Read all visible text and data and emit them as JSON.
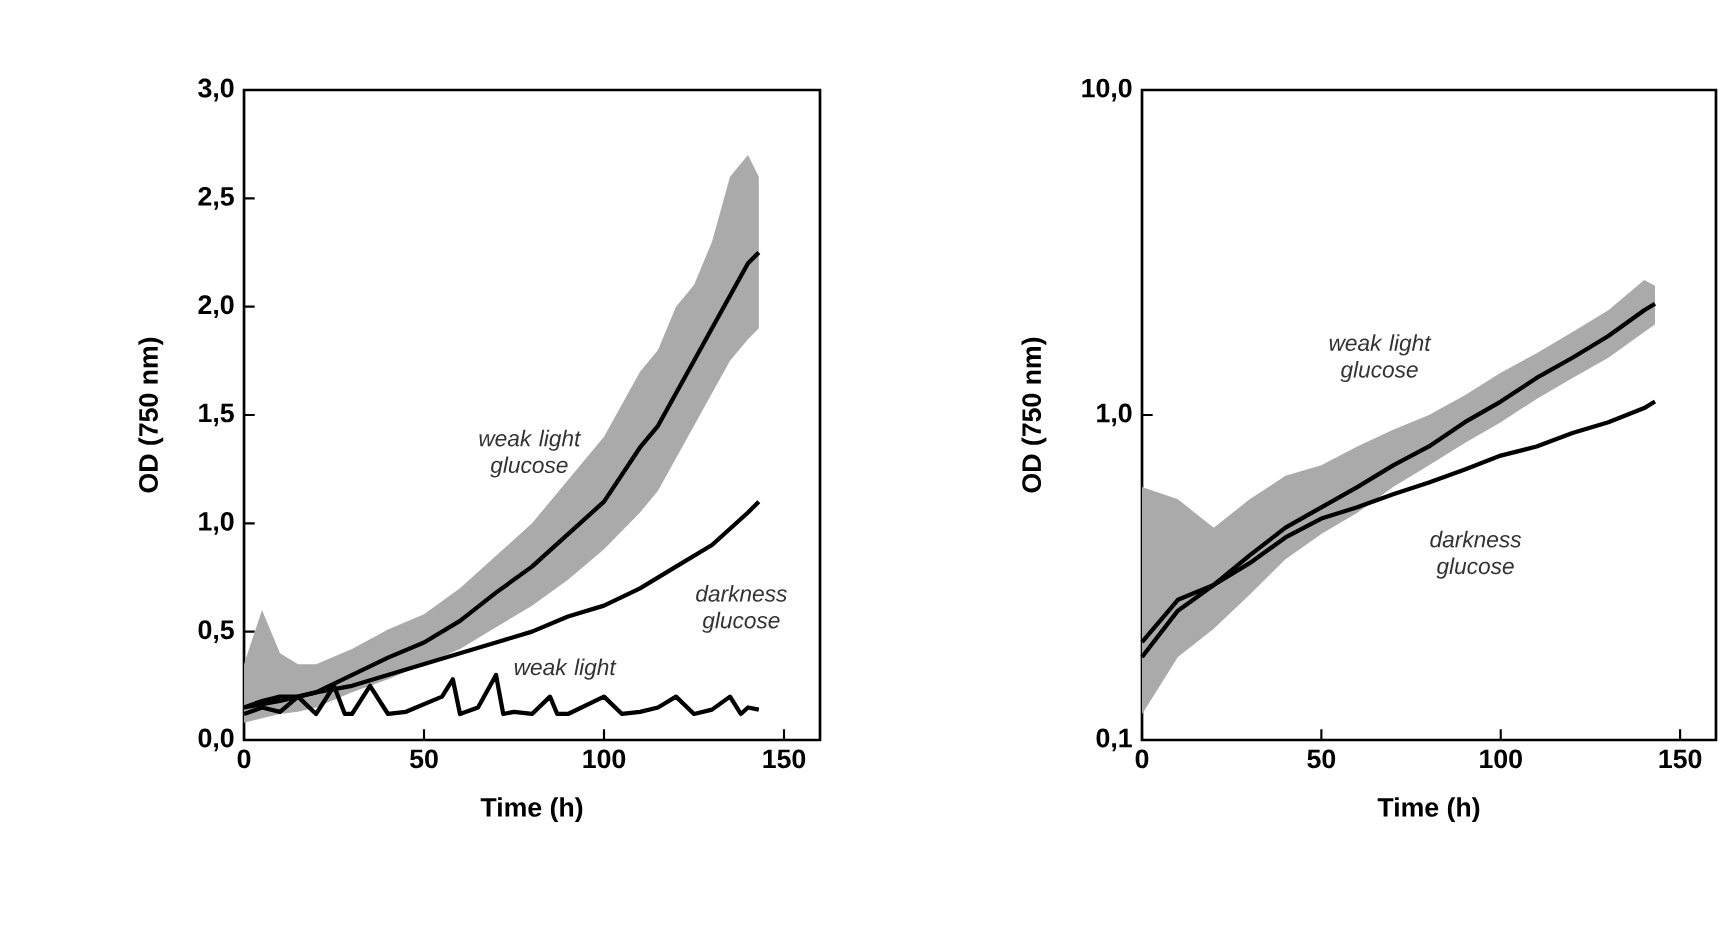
{
  "chart_data": [
    {
      "type": "line",
      "xlabel": "Time (h)",
      "ylabel": "OD (750 nm)",
      "xlim": [
        0,
        160
      ],
      "ylim": [
        0,
        3
      ],
      "xticks": [
        0,
        50,
        100,
        150
      ],
      "yticks": [
        {
          "value": 0,
          "label": "0,0"
        },
        {
          "value": 0.5,
          "label": "0,5"
        },
        {
          "value": 1,
          "label": "1,0"
        },
        {
          "value": 1.5,
          "label": "1,5"
        },
        {
          "value": 2,
          "label": "2,0"
        },
        {
          "value": 2.5,
          "label": "2,5"
        },
        {
          "value": 3,
          "label": "3,0"
        }
      ],
      "line_style": "solid",
      "series": [
        {
          "name": "weak light glucose",
          "color": "#000000",
          "x": [
            0,
            5,
            10,
            15,
            20,
            30,
            40,
            50,
            60,
            70,
            80,
            90,
            100,
            110,
            115,
            120,
            125,
            130,
            135,
            140,
            143
          ],
          "values": [
            0.15,
            0.18,
            0.2,
            0.2,
            0.22,
            0.3,
            0.38,
            0.45,
            0.55,
            0.68,
            0.8,
            0.95,
            1.1,
            1.35,
            1.45,
            1.6,
            1.75,
            1.9,
            2.05,
            2.2,
            2.25
          ],
          "lower": [
            0.08,
            0.1,
            0.12,
            0.13,
            0.15,
            0.22,
            0.28,
            0.35,
            0.42,
            0.52,
            0.62,
            0.74,
            0.88,
            1.05,
            1.15,
            1.3,
            1.45,
            1.6,
            1.75,
            1.85,
            1.9
          ],
          "upper": [
            0.35,
            0.6,
            0.4,
            0.35,
            0.35,
            0.42,
            0.51,
            0.58,
            0.7,
            0.85,
            1.0,
            1.2,
            1.4,
            1.7,
            1.8,
            2.0,
            2.1,
            2.3,
            2.6,
            2.7,
            2.6
          ]
        },
        {
          "name": "darkness glucose",
          "color": "#000000",
          "x": [
            0,
            10,
            20,
            30,
            40,
            50,
            60,
            70,
            80,
            90,
            100,
            110,
            120,
            130,
            140,
            143
          ],
          "values": [
            0.15,
            0.18,
            0.22,
            0.25,
            0.3,
            0.35,
            0.4,
            0.45,
            0.5,
            0.57,
            0.62,
            0.7,
            0.8,
            0.9,
            1.05,
            1.1
          ]
        },
        {
          "name": "weak light",
          "color": "#000000",
          "x": [
            0,
            5,
            10,
            15,
            20,
            25,
            28,
            30,
            35,
            40,
            45,
            55,
            58,
            60,
            65,
            70,
            72,
            75,
            80,
            85,
            87,
            90,
            100,
            105,
            110,
            115,
            120,
            125,
            130,
            135,
            138,
            140,
            143
          ],
          "values": [
            0.12,
            0.15,
            0.13,
            0.2,
            0.12,
            0.25,
            0.12,
            0.12,
            0.25,
            0.12,
            0.13,
            0.2,
            0.28,
            0.12,
            0.15,
            0.3,
            0.12,
            0.13,
            0.12,
            0.2,
            0.12,
            0.12,
            0.2,
            0.12,
            0.13,
            0.15,
            0.2,
            0.12,
            0.14,
            0.2,
            0.12,
            0.15,
            0.14
          ]
        }
      ]
    },
    {
      "type": "line",
      "xlabel": "Time (h)",
      "ylabel": "OD (750 nm)",
      "xlim": [
        0,
        160
      ],
      "ylim": [
        0.1,
        10
      ],
      "log": "y",
      "xticks": [
        0,
        50,
        100,
        150
      ],
      "yticks": [
        {
          "value": 0.1,
          "label": "0,1"
        },
        {
          "value": 1,
          "label": "1,0"
        },
        {
          "value": 10,
          "label": "10,0"
        }
      ],
      "line_style": "solid",
      "series": [
        {
          "name": "weak light glucose",
          "color": "#000000",
          "x": [
            0,
            10,
            20,
            30,
            40,
            50,
            60,
            70,
            80,
            90,
            100,
            110,
            120,
            130,
            140,
            143
          ],
          "values": [
            0.2,
            0.27,
            0.3,
            0.37,
            0.45,
            0.52,
            0.6,
            0.7,
            0.8,
            0.95,
            1.1,
            1.3,
            1.5,
            1.75,
            2.1,
            2.2
          ],
          "lower": [
            0.12,
            0.18,
            0.22,
            0.28,
            0.36,
            0.43,
            0.5,
            0.6,
            0.7,
            0.82,
            0.95,
            1.12,
            1.3,
            1.5,
            1.8,
            1.9
          ],
          "upper": [
            0.6,
            0.55,
            0.45,
            0.55,
            0.65,
            0.7,
            0.8,
            0.9,
            1.0,
            1.15,
            1.35,
            1.55,
            1.8,
            2.1,
            2.6,
            2.5
          ]
        },
        {
          "name": "darkness glucose",
          "color": "#000000",
          "x": [
            0,
            10,
            20,
            30,
            40,
            50,
            60,
            70,
            80,
            90,
            100,
            110,
            120,
            130,
            140,
            143
          ],
          "values": [
            0.18,
            0.25,
            0.3,
            0.35,
            0.42,
            0.48,
            0.52,
            0.57,
            0.62,
            0.68,
            0.75,
            0.8,
            0.88,
            0.95,
            1.05,
            1.1
          ]
        }
      ]
    }
  ]
}
